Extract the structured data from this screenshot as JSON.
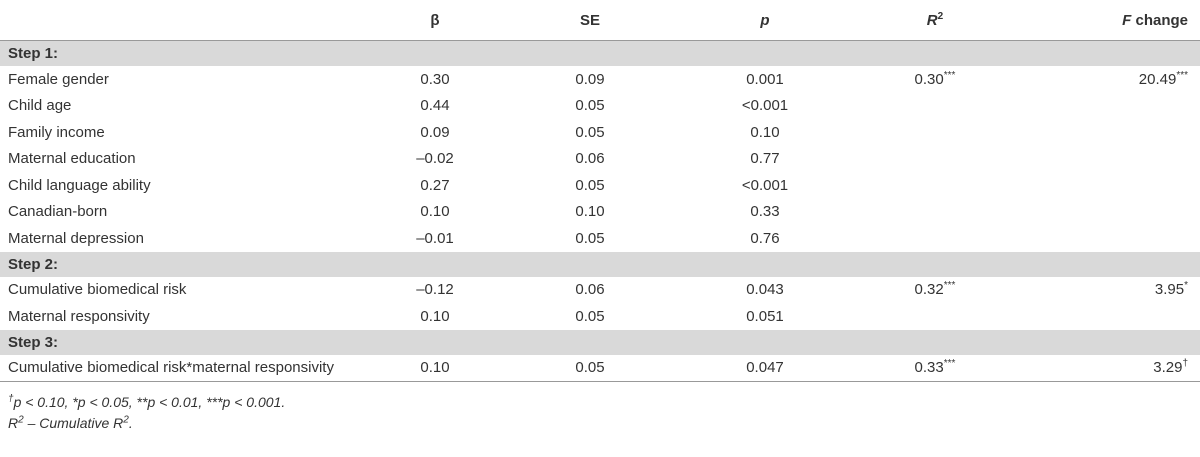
{
  "table": {
    "header": [
      {
        "text": "β"
      },
      {
        "text": "SE"
      },
      {
        "text": "p"
      },
      {
        "text": "R",
        "sup": "2"
      },
      {
        "text": "F",
        "after": " change"
      }
    ],
    "sections": [
      {
        "title": "Step 1:",
        "rows": [
          {
            "label": "Female gender",
            "cells": [
              {
                "text": "0.30"
              },
              {
                "text": "0.09"
              },
              {
                "text": "0.001"
              },
              {
                "text": "0.30",
                "sup": "***"
              },
              {
                "text": "20.49",
                "sup": "***"
              }
            ]
          },
          {
            "label": "Child age",
            "cells": [
              {
                "text": "0.44"
              },
              {
                "text": "0.05"
              },
              {
                "text": "<0.001"
              },
              null,
              null
            ]
          },
          {
            "label": "Family income",
            "cells": [
              {
                "text": "0.09"
              },
              {
                "text": "0.05"
              },
              {
                "text": "0.10"
              },
              null,
              null
            ]
          },
          {
            "label": "Maternal education",
            "cells": [
              {
                "text": "–0.02"
              },
              {
                "text": "0.06"
              },
              {
                "text": "0.77"
              },
              null,
              null
            ]
          },
          {
            "label": "Child language ability",
            "cells": [
              {
                "text": "0.27"
              },
              {
                "text": "0.05"
              },
              {
                "text": "<0.001"
              },
              null,
              null
            ]
          },
          {
            "label": "Canadian-born",
            "cells": [
              {
                "text": "0.10"
              },
              {
                "text": "0.10"
              },
              {
                "text": "0.33"
              },
              null,
              null
            ]
          },
          {
            "label": "Maternal depression",
            "cells": [
              {
                "text": "–0.01"
              },
              {
                "text": "0.05"
              },
              {
                "text": "0.76"
              },
              null,
              null
            ]
          }
        ]
      },
      {
        "title": "Step 2:",
        "rows": [
          {
            "label": "Cumulative biomedical risk",
            "cells": [
              {
                "text": "–0.12"
              },
              {
                "text": "0.06"
              },
              {
                "text": "0.043"
              },
              {
                "text": "0.32",
                "sup": "***"
              },
              {
                "text": "3.95",
                "sup": "*"
              }
            ]
          },
          {
            "label": "Maternal responsivity",
            "cells": [
              {
                "text": "0.10"
              },
              {
                "text": "0.05"
              },
              {
                "text": "0.051"
              },
              null,
              null
            ]
          }
        ]
      },
      {
        "title": "Step 3:",
        "rows": [
          {
            "label": "Cumulative biomedical risk*maternal responsivity",
            "cells": [
              {
                "text": "0.10"
              },
              {
                "text": "0.05"
              },
              {
                "text": "0.047"
              },
              {
                "text": "0.33",
                "sup": "***"
              },
              {
                "text": "3.29",
                "sup": "†"
              }
            ]
          }
        ]
      }
    ],
    "footnotes": [
      [
        {
          "text": "†",
          "sup": true
        },
        {
          "text": "p < 0.10, *p < 0.05, **p < 0.01, ***p < 0.001."
        }
      ],
      [
        {
          "text": "R"
        },
        {
          "text": "2",
          "sup": true
        },
        {
          "text": " – Cumulative R"
        },
        {
          "text": "2",
          "sup": true
        },
        {
          "text": "."
        }
      ]
    ]
  }
}
